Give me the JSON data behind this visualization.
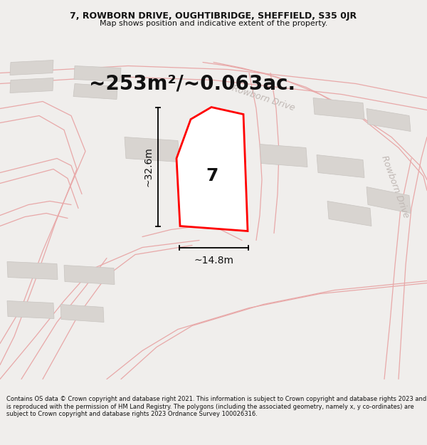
{
  "title_line1": "7, ROWBORN DRIVE, OUGHTIBRIDGE, SHEFFIELD, S35 0JR",
  "title_line2": "Map shows position and indicative extent of the property.",
  "area_text": "~253m²/~0.063ac.",
  "number_label": "7",
  "dim_width": "~14.8m",
  "dim_height": "~32.6m",
  "road_label1": "Rowborn Drive",
  "road_label2": "Rowborn Drive",
  "footer_text": "Contains OS data © Crown copyright and database right 2021. This information is subject to Crown copyright and database rights 2023 and is reproduced with the permission of HM Land Registry. The polygons (including the associated geometry, namely x, y co-ordinates) are subject to Crown copyright and database rights 2023 Ordnance Survey 100026316.",
  "bg_color": "#f0eeec",
  "map_bg": "#f7f5f3",
  "plot_color": "#ffffff",
  "plot_outline": "#ff0000",
  "building_fill": "#d8d4d0",
  "building_edge": "#c8c4c0",
  "street_line_color": "#e8a8a8",
  "dim_line_color": "#000000",
  "road_text_color": "#c0b8b4",
  "header_fontsize": 9,
  "subtitle_fontsize": 8,
  "area_fontsize": 20,
  "number_fontsize": 18,
  "dim_fontsize": 10,
  "road_fontsize": 9,
  "footer_fontsize": 6
}
